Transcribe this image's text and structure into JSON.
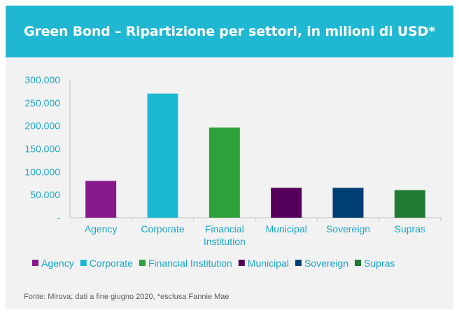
{
  "header": {
    "title": "Green Bond – Ripartizione per settori, in milioni di USD*"
  },
  "footnote": "Fonte: Mirova; dati a fine giugno 2020, *esclusa Fannie Mae",
  "colors": {
    "header_bg": "#1fb7d2",
    "card_bg": "#f2f2f2",
    "tick_text": "#1aa7c8",
    "axis_line": "#bfbfbf"
  },
  "chart_data": {
    "type": "bar",
    "title": "",
    "xlabel": "",
    "ylabel": "",
    "categories": [
      "Agency",
      "Corporate",
      "Financial Institution",
      "Municipal",
      "Sovereign",
      "Supras"
    ],
    "category_labels": [
      [
        "Agency"
      ],
      [
        "Corporate"
      ],
      [
        "Financial",
        "Institution"
      ],
      [
        "Municipal"
      ],
      [
        "Sovereign"
      ],
      [
        "Supras"
      ]
    ],
    "values": [
      80000,
      270000,
      196000,
      65000,
      65000,
      60000
    ],
    "colors": [
      "#861a8c",
      "#1ab9d3",
      "#2ea13b",
      "#55005a",
      "#003f74",
      "#1f7a33"
    ],
    "ylim": [
      0,
      300000
    ],
    "yticks": [
      0,
      50000,
      100000,
      150000,
      200000,
      250000,
      300000
    ],
    "ytick_labels": [
      "-",
      "50.000",
      "100.000",
      "150.000",
      "200.000",
      "250.000",
      "300.000"
    ],
    "grid": false,
    "legend": {
      "position": "bottom",
      "entries": [
        "Agency",
        "Corporate",
        "Financial Institution",
        "Municipal",
        "Sovereign",
        "Supras"
      ]
    }
  }
}
